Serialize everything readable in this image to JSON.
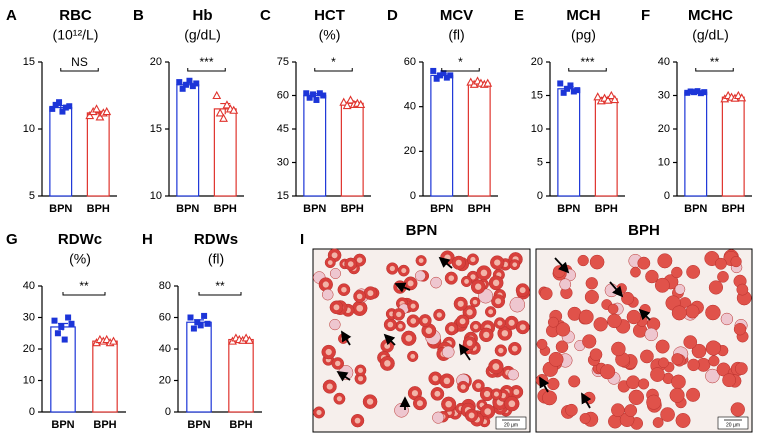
{
  "chart_data": [
    {
      "type": "bar",
      "panel": "A",
      "title": "RBC",
      "subtitle": "(10¹²/L)",
      "categories": [
        "BPN",
        "BPH"
      ],
      "values": [
        11.6,
        11.2
      ],
      "errors": [
        0.15,
        0.12
      ],
      "colors": [
        "#1c35d8",
        "#e0342e"
      ],
      "points": [
        [
          11.5,
          11.8,
          12.0,
          11.3,
          11.6,
          11.7
        ],
        [
          11.0,
          11.3,
          11.5,
          10.9,
          11.2,
          11.3
        ]
      ],
      "significance": "NS",
      "ylim": [
        5,
        15
      ],
      "yticks": [
        5,
        10,
        15
      ]
    },
    {
      "type": "bar",
      "panel": "B",
      "title": "Hb",
      "subtitle": "(g/dL)",
      "categories": [
        "BPN",
        "BPH"
      ],
      "values": [
        18.3,
        16.5
      ],
      "errors": [
        0.12,
        0.4
      ],
      "colors": [
        "#1c35d8",
        "#e0342e"
      ],
      "points": [
        [
          18.5,
          18.0,
          18.3,
          18.6,
          18.2,
          18.4
        ],
        [
          17.5,
          16.2,
          15.8,
          16.8,
          16.5,
          16.4
        ]
      ],
      "significance": "***",
      "ylim": [
        10,
        20
      ],
      "yticks": [
        10,
        15,
        20
      ]
    },
    {
      "type": "bar",
      "panel": "C",
      "title": "HCT",
      "subtitle": "(%)",
      "categories": [
        "BPN",
        "BPH"
      ],
      "values": [
        60,
        56.5
      ],
      "errors": [
        0.8,
        0.7
      ],
      "colors": [
        "#1c35d8",
        "#e0342e"
      ],
      "points": [
        [
          61,
          59,
          60.5,
          58,
          61,
          60
        ],
        [
          57,
          55.5,
          58,
          56,
          56.5,
          56
        ]
      ],
      "significance": "*",
      "ylim": [
        15,
        75
      ],
      "yticks": [
        15,
        30,
        45,
        60,
        75
      ]
    },
    {
      "type": "bar",
      "panel": "D",
      "title": "MCV",
      "subtitle": "(fl)",
      "categories": [
        "BPN",
        "BPH"
      ],
      "values": [
        54,
        50.5
      ],
      "errors": [
        0.8,
        0.4
      ],
      "colors": [
        "#1c35d8",
        "#e0342e"
      ],
      "points": [
        [
          56,
          52.5,
          54,
          55,
          53,
          54
        ],
        [
          51,
          50,
          51.5,
          50.5,
          50,
          50.5
        ]
      ],
      "significance": "*",
      "ylim": [
        0,
        60
      ],
      "yticks": [
        0,
        20,
        40,
        60
      ]
    },
    {
      "type": "bar",
      "panel": "E",
      "title": "MCH",
      "subtitle": "(pg)",
      "categories": [
        "BPN",
        "BPH"
      ],
      "values": [
        16,
        14.5
      ],
      "errors": [
        0.3,
        0.2
      ],
      "colors": [
        "#1c35d8",
        "#e0342e"
      ],
      "points": [
        [
          16.8,
          15.4,
          16,
          16.5,
          15.6,
          15.8
        ],
        [
          14.8,
          14.2,
          14.6,
          14.3,
          15,
          14.4
        ]
      ],
      "significance": "***",
      "ylim": [
        0,
        20
      ],
      "yticks": [
        0,
        5,
        10,
        15,
        20
      ]
    },
    {
      "type": "bar",
      "panel": "F",
      "title": "MCHC",
      "subtitle": "(g/dL)",
      "categories": [
        "BPN",
        "BPH"
      ],
      "values": [
        31,
        29.5
      ],
      "errors": [
        0.2,
        0.3
      ],
      "colors": [
        "#1c35d8",
        "#e0342e"
      ],
      "points": [
        [
          30.8,
          31.2,
          31,
          31.3,
          30.7,
          31
        ],
        [
          29,
          30,
          29.5,
          29.2,
          30,
          29.3
        ]
      ],
      "significance": "**",
      "ylim": [
        0,
        40
      ],
      "yticks": [
        0,
        10,
        20,
        30,
        40
      ]
    },
    {
      "type": "bar",
      "panel": "G",
      "title": "RDWc",
      "subtitle": "(%)",
      "categories": [
        "BPN",
        "BPH"
      ],
      "values": [
        27,
        22.5
      ],
      "errors": [
        1.1,
        0.3
      ],
      "colors": [
        "#1c35d8",
        "#e0342e"
      ],
      "points": [
        [
          29,
          25,
          27,
          23,
          30,
          28
        ],
        [
          22,
          23,
          22.5,
          23,
          22,
          22.5
        ]
      ],
      "significance": "**",
      "ylim": [
        0,
        40
      ],
      "yticks": [
        0,
        10,
        20,
        30,
        40
      ]
    },
    {
      "type": "bar",
      "panel": "H",
      "title": "RDWs",
      "subtitle": "(fl)",
      "categories": [
        "BPN",
        "BPH"
      ],
      "values": [
        57,
        46
      ],
      "errors": [
        1.5,
        0.6
      ],
      "colors": [
        "#1c35d8",
        "#e0342e"
      ],
      "points": [
        [
          60,
          53,
          57,
          55,
          61,
          56
        ],
        [
          45,
          47,
          46,
          45.5,
          47,
          45.5
        ]
      ],
      "significance": "**",
      "ylim": [
        0,
        80
      ],
      "yticks": [
        0,
        20,
        40,
        60,
        80
      ]
    }
  ],
  "panel_i": {
    "letter": "I",
    "images": [
      {
        "title": "BPN",
        "scale_bar": "20 µm"
      },
      {
        "title": "BPH",
        "scale_bar": "20 µm"
      }
    ]
  }
}
